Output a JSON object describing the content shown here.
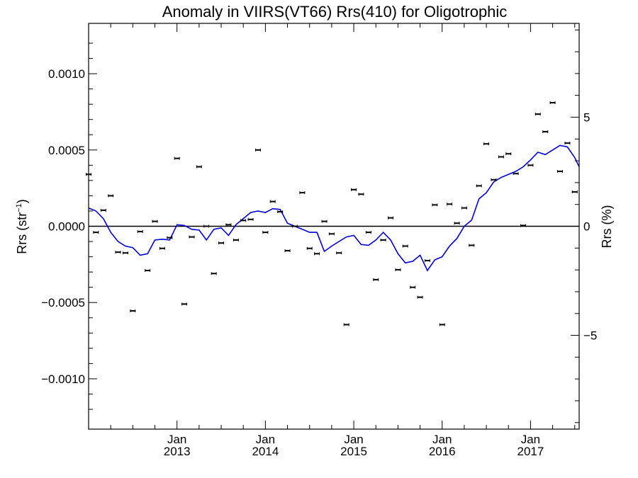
{
  "chart_data": {
    "type": "scatter",
    "title": "Anomaly in VIIRS(VT66) Rrs(410) for Oligotrophic",
    "ylabel_left_text": "Rrs (str",
    "ylabel_left_sup": "−1",
    "ylabel_left_close": ")",
    "ylabel_right": "Rrs (%)",
    "x_range": [
      2012.0,
      2017.55
    ],
    "ylim_left": [
      -0.00133,
      0.00133
    ],
    "ylim_right": [
      -9.3,
      9.3
    ],
    "left_ticks": [
      {
        "value": 0.001,
        "label": "0.0010"
      },
      {
        "value": 0.0005,
        "label": "0.0005"
      },
      {
        "value": 0.0,
        "label": "0.0000"
      },
      {
        "value": -0.0005,
        "label": "−0.0005"
      },
      {
        "value": -0.001,
        "label": "−0.0010"
      }
    ],
    "right_ticks": [
      {
        "value": 5,
        "label": "5"
      },
      {
        "value": 0,
        "label": "0"
      },
      {
        "value": -5,
        "label": "−5"
      }
    ],
    "x_ticks": [
      {
        "value": 2013.0,
        "month": "Jan",
        "year": "2013"
      },
      {
        "value": 2014.0,
        "month": "Jan",
        "year": "2014"
      },
      {
        "value": 2015.0,
        "month": "Jan",
        "year": "2015"
      },
      {
        "value": 2016.0,
        "month": "Jan",
        "year": "2016"
      },
      {
        "value": 2017.0,
        "month": "Jan",
        "year": "2017"
      }
    ],
    "zero_line": true,
    "colors": {
      "points": "#000000",
      "line": "#0000dd",
      "axes": "#000000"
    },
    "series": [
      {
        "kind": "points",
        "x": [
          2012.0,
          2012.083,
          2012.167,
          2012.25,
          2012.333,
          2012.417,
          2012.5,
          2012.583,
          2012.667,
          2012.75,
          2012.833,
          2012.917,
          2013.0,
          2013.083,
          2013.167,
          2013.25,
          2013.333,
          2013.417,
          2013.5,
          2013.583,
          2013.667,
          2013.75,
          2013.833,
          2013.917,
          2014.0,
          2014.083,
          2014.167,
          2014.25,
          2014.333,
          2014.417,
          2014.5,
          2014.583,
          2014.667,
          2014.75,
          2014.833,
          2014.917,
          2015.0,
          2015.083,
          2015.167,
          2015.25,
          2015.333,
          2015.417,
          2015.5,
          2015.583,
          2015.667,
          2015.75,
          2015.833,
          2015.917,
          2016.0,
          2016.083,
          2016.167,
          2016.25,
          2016.333,
          2016.417,
          2016.5,
          2016.583,
          2016.667,
          2016.75,
          2016.833,
          2016.917,
          2017.0,
          2017.083,
          2017.167,
          2017.25,
          2017.333,
          2017.417,
          2017.5
        ],
        "y": [
          0.00034,
          -4e-05,
          0.000105,
          0.0002,
          -0.00017,
          -0.000175,
          -0.000555,
          -3.5e-05,
          -0.00029,
          3.2e-05,
          -0.000145,
          -7.5e-05,
          0.000445,
          -0.00051,
          -7e-05,
          0.00039,
          0.0,
          -0.00031,
          -0.00011,
          1e-05,
          -9e-05,
          3.8e-05,
          4.5e-05,
          0.0005,
          -4e-05,
          0.000162,
          9.5e-05,
          -0.00016,
          0.0,
          0.00022,
          -0.000145,
          -0.00018,
          3.2e-05,
          -5e-05,
          -0.000175,
          -0.000645,
          0.00024,
          0.00021,
          -4e-05,
          -0.00035,
          -9e-05,
          5.5e-05,
          -0.000285,
          -0.00013,
          -0.0004,
          -0.000465,
          -0.000225,
          0.00014,
          -0.000645,
          0.000145,
          2e-05,
          0.00012,
          -0.000125,
          0.000265,
          0.00054,
          0.000305,
          0.000455,
          0.000475,
          0.000345,
          5e-06,
          0.0004,
          0.000735,
          0.00062,
          0.00081,
          0.00036,
          0.000545,
          0.000225
        ]
      },
      {
        "kind": "line",
        "x": [
          2012.0,
          2012.083,
          2012.167,
          2012.25,
          2012.333,
          2012.417,
          2012.5,
          2012.583,
          2012.667,
          2012.75,
          2012.833,
          2012.917,
          2013.0,
          2013.083,
          2013.167,
          2013.25,
          2013.333,
          2013.417,
          2013.5,
          2013.583,
          2013.667,
          2013.75,
          2013.833,
          2013.917,
          2014.0,
          2014.083,
          2014.167,
          2014.25,
          2014.333,
          2014.417,
          2014.5,
          2014.583,
          2014.667,
          2014.75,
          2014.833,
          2014.917,
          2015.0,
          2015.083,
          2015.167,
          2015.25,
          2015.333,
          2015.417,
          2015.5,
          2015.583,
          2015.667,
          2015.75,
          2015.833,
          2015.917,
          2016.0,
          2016.083,
          2016.167,
          2016.25,
          2016.333,
          2016.417,
          2016.5,
          2016.583,
          2016.667,
          2016.75,
          2016.833,
          2016.917,
          2017.0,
          2017.083,
          2017.167,
          2017.25,
          2017.333,
          2017.417,
          2017.5,
          2017.55
        ],
        "y": [
          0.00012,
          0.0001,
          5e-05,
          -4e-05,
          -0.0001,
          -0.00013,
          -0.00014,
          -0.00019,
          -0.00018,
          -9e-05,
          -8.5e-05,
          -9e-05,
          1e-05,
          5e-06,
          -2e-05,
          -2.5e-05,
          -9e-05,
          -2e-05,
          -1e-05,
          -6e-05,
          1e-05,
          5e-05,
          9e-05,
          0.0001,
          9e-05,
          0.000115,
          0.00011,
          2e-05,
          0.0,
          -2e-05,
          -4e-05,
          -4e-05,
          -0.000165,
          -0.00013,
          -0.0001,
          -7e-05,
          -6e-05,
          -0.00012,
          -0.000125,
          -9e-05,
          -4e-05,
          -9e-05,
          -0.00018,
          -0.00024,
          -0.00023,
          -0.00019,
          -0.00029,
          -0.00022,
          -0.0002,
          -0.00013,
          -8e-05,
          0.0,
          4e-05,
          0.00018,
          0.00022,
          0.00029,
          0.00032,
          0.00034,
          0.00036,
          0.00039,
          0.000435,
          0.000485,
          0.00047,
          0.0005,
          0.00053,
          0.00052,
          0.00045,
          0.00039
        ]
      }
    ]
  }
}
